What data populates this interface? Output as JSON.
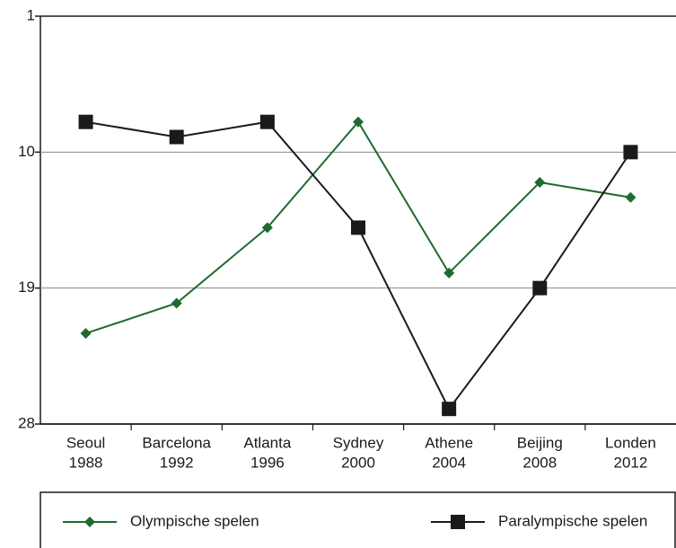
{
  "chart_data": {
    "type": "line",
    "categories": [
      [
        "Seoul",
        "1988"
      ],
      [
        "Barcelona",
        "1992"
      ],
      [
        "Atlanta",
        "1996"
      ],
      [
        "Sydney",
        "2000"
      ],
      [
        "Athene",
        "2004"
      ],
      [
        "Beijing",
        "2008"
      ],
      [
        "Londen",
        "2012"
      ]
    ],
    "series": [
      {
        "name": "Olympische spelen",
        "color": "#1e6b2e",
        "marker": "diamond",
        "values": [
          22,
          20,
          15,
          8,
          18,
          12,
          13
        ]
      },
      {
        "name": "Paralympische spelen",
        "color": "#1a1a1a",
        "marker": "square",
        "values": [
          8,
          9,
          8,
          15,
          27,
          19,
          10
        ]
      }
    ],
    "ylim": [
      1,
      28
    ],
    "yticks": [
      1,
      10,
      19,
      28
    ],
    "y_inverted": true,
    "grid": true,
    "legend": "bottom"
  }
}
